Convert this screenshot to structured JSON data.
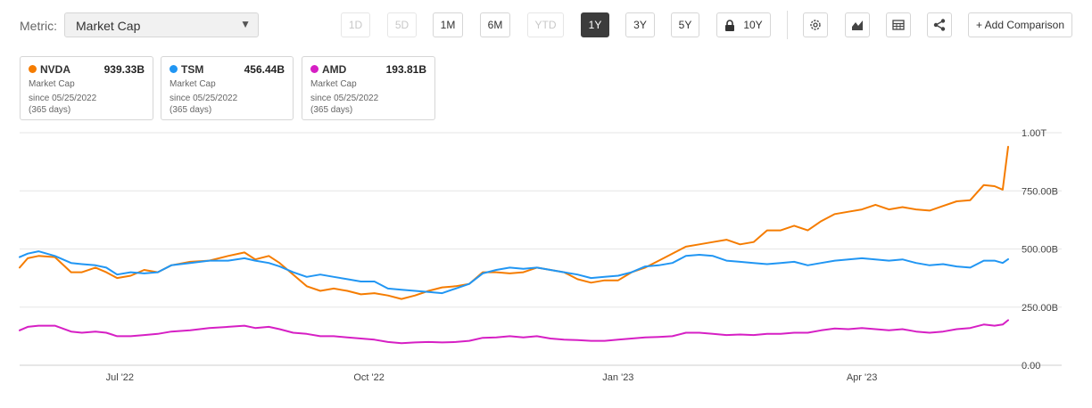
{
  "toolbar": {
    "metric_label": "Metric:",
    "metric_value": "Market Cap",
    "ranges": [
      {
        "label": "1D",
        "state": "disabled"
      },
      {
        "label": "5D",
        "state": "disabled"
      },
      {
        "label": "1M",
        "state": "normal"
      },
      {
        "label": "6M",
        "state": "normal"
      },
      {
        "label": "YTD",
        "state": "disabled"
      },
      {
        "label": "1Y",
        "state": "active"
      },
      {
        "label": "3Y",
        "state": "normal"
      },
      {
        "label": "5Y",
        "state": "normal"
      },
      {
        "label": "10Y",
        "state": "locked"
      }
    ],
    "icons": [
      "settings-icon",
      "area-chart-icon",
      "table-icon",
      "share-icon"
    ],
    "add_comparison": "+ Add Comparison"
  },
  "cards": [
    {
      "ticker": "NVDA",
      "value": "939.33B",
      "metric": "Market Cap",
      "since": "since 05/25/2022",
      "days": "(365 days)",
      "color": "#f57c00"
    },
    {
      "ticker": "TSM",
      "value": "456.44B",
      "metric": "Market Cap",
      "since": "since 05/25/2022",
      "days": "(365 days)",
      "color": "#2196f3"
    },
    {
      "ticker": "AMD",
      "value": "193.81B",
      "metric": "Market Cap",
      "since": "since 05/25/2022",
      "days": "(365 days)",
      "color": "#d61fc4"
    }
  ],
  "chart_data": {
    "type": "line",
    "y_unit": "USD",
    "ylim": [
      0,
      1000000000000
    ],
    "y_ticks": [
      {
        "value": 0,
        "label": "0.00"
      },
      {
        "value": 250000000000,
        "label": "250.00B"
      },
      {
        "value": 500000000000,
        "label": "500.00B"
      },
      {
        "value": 750000000000,
        "label": "750.00B"
      },
      {
        "value": 1000000000000,
        "label": "1.00T"
      }
    ],
    "xlim": [
      "2022-05-25",
      "2023-05-25"
    ],
    "x_ticks": [
      {
        "date": "2022-07-01",
        "label": "Jul '22"
      },
      {
        "date": "2022-10-01",
        "label": "Oct '22"
      },
      {
        "date": "2023-01-01",
        "label": "Jan '23"
      },
      {
        "date": "2023-04-01",
        "label": "Apr '23"
      }
    ],
    "grid": "horizontal",
    "series": [
      {
        "name": "NVDA",
        "color": "#f57c00",
        "points": [
          [
            "2022-05-25",
            420000000000
          ],
          [
            "2022-05-28",
            460000000000
          ],
          [
            "2022-06-01",
            470000000000
          ],
          [
            "2022-06-07",
            465000000000
          ],
          [
            "2022-06-13",
            400000000000
          ],
          [
            "2022-06-17",
            400000000000
          ],
          [
            "2022-06-22",
            420000000000
          ],
          [
            "2022-06-26",
            400000000000
          ],
          [
            "2022-06-30",
            375000000000
          ],
          [
            "2022-07-05",
            385000000000
          ],
          [
            "2022-07-10",
            410000000000
          ],
          [
            "2022-07-15",
            400000000000
          ],
          [
            "2022-07-20",
            430000000000
          ],
          [
            "2022-07-27",
            445000000000
          ],
          [
            "2022-08-03",
            450000000000
          ],
          [
            "2022-08-10",
            470000000000
          ],
          [
            "2022-08-16",
            485000000000
          ],
          [
            "2022-08-20",
            455000000000
          ],
          [
            "2022-08-25",
            470000000000
          ],
          [
            "2022-08-29",
            440000000000
          ],
          [
            "2022-09-03",
            390000000000
          ],
          [
            "2022-09-08",
            340000000000
          ],
          [
            "2022-09-13",
            320000000000
          ],
          [
            "2022-09-18",
            330000000000
          ],
          [
            "2022-09-23",
            320000000000
          ],
          [
            "2022-09-28",
            305000000000
          ],
          [
            "2022-10-03",
            310000000000
          ],
          [
            "2022-10-08",
            300000000000
          ],
          [
            "2022-10-13",
            285000000000
          ],
          [
            "2022-10-18",
            300000000000
          ],
          [
            "2022-10-23",
            320000000000
          ],
          [
            "2022-10-28",
            335000000000
          ],
          [
            "2022-11-02",
            340000000000
          ],
          [
            "2022-11-07",
            350000000000
          ],
          [
            "2022-11-12",
            400000000000
          ],
          [
            "2022-11-17",
            400000000000
          ],
          [
            "2022-11-22",
            395000000000
          ],
          [
            "2022-11-27",
            400000000000
          ],
          [
            "2022-12-02",
            420000000000
          ],
          [
            "2022-12-07",
            410000000000
          ],
          [
            "2022-12-12",
            400000000000
          ],
          [
            "2022-12-17",
            370000000000
          ],
          [
            "2022-12-22",
            355000000000
          ],
          [
            "2022-12-27",
            365000000000
          ],
          [
            "2023-01-01",
            365000000000
          ],
          [
            "2023-01-06",
            400000000000
          ],
          [
            "2023-01-11",
            420000000000
          ],
          [
            "2023-01-16",
            450000000000
          ],
          [
            "2023-01-21",
            480000000000
          ],
          [
            "2023-01-26",
            510000000000
          ],
          [
            "2023-01-31",
            520000000000
          ],
          [
            "2023-02-05",
            530000000000
          ],
          [
            "2023-02-10",
            540000000000
          ],
          [
            "2023-02-15",
            520000000000
          ],
          [
            "2023-02-20",
            530000000000
          ],
          [
            "2023-02-25",
            580000000000
          ],
          [
            "2023-03-02",
            580000000000
          ],
          [
            "2023-03-07",
            600000000000
          ],
          [
            "2023-03-12",
            580000000000
          ],
          [
            "2023-03-17",
            620000000000
          ],
          [
            "2023-03-22",
            650000000000
          ],
          [
            "2023-03-27",
            660000000000
          ],
          [
            "2023-04-01",
            670000000000
          ],
          [
            "2023-04-06",
            690000000000
          ],
          [
            "2023-04-11",
            670000000000
          ],
          [
            "2023-04-16",
            680000000000
          ],
          [
            "2023-04-21",
            670000000000
          ],
          [
            "2023-04-26",
            665000000000
          ],
          [
            "2023-05-01",
            685000000000
          ],
          [
            "2023-05-06",
            705000000000
          ],
          [
            "2023-05-11",
            710000000000
          ],
          [
            "2023-05-16",
            775000000000
          ],
          [
            "2023-05-20",
            770000000000
          ],
          [
            "2023-05-23",
            755000000000
          ],
          [
            "2023-05-25",
            939330000000
          ]
        ]
      },
      {
        "name": "TSM",
        "color": "#2196f3",
        "points": [
          [
            "2022-05-25",
            465000000000
          ],
          [
            "2022-05-28",
            480000000000
          ],
          [
            "2022-06-01",
            490000000000
          ],
          [
            "2022-06-07",
            470000000000
          ],
          [
            "2022-06-13",
            440000000000
          ],
          [
            "2022-06-17",
            435000000000
          ],
          [
            "2022-06-22",
            430000000000
          ],
          [
            "2022-06-26",
            420000000000
          ],
          [
            "2022-06-30",
            390000000000
          ],
          [
            "2022-07-05",
            400000000000
          ],
          [
            "2022-07-10",
            395000000000
          ],
          [
            "2022-07-15",
            400000000000
          ],
          [
            "2022-07-20",
            430000000000
          ],
          [
            "2022-07-27",
            440000000000
          ],
          [
            "2022-08-03",
            450000000000
          ],
          [
            "2022-08-10",
            450000000000
          ],
          [
            "2022-08-16",
            460000000000
          ],
          [
            "2022-08-20",
            450000000000
          ],
          [
            "2022-08-25",
            440000000000
          ],
          [
            "2022-08-29",
            425000000000
          ],
          [
            "2022-09-03",
            400000000000
          ],
          [
            "2022-09-08",
            380000000000
          ],
          [
            "2022-09-13",
            390000000000
          ],
          [
            "2022-09-18",
            380000000000
          ],
          [
            "2022-09-23",
            370000000000
          ],
          [
            "2022-09-28",
            360000000000
          ],
          [
            "2022-10-03",
            360000000000
          ],
          [
            "2022-10-08",
            330000000000
          ],
          [
            "2022-10-13",
            325000000000
          ],
          [
            "2022-10-18",
            320000000000
          ],
          [
            "2022-10-23",
            315000000000
          ],
          [
            "2022-10-28",
            310000000000
          ],
          [
            "2022-11-02",
            330000000000
          ],
          [
            "2022-11-07",
            350000000000
          ],
          [
            "2022-11-12",
            395000000000
          ],
          [
            "2022-11-17",
            410000000000
          ],
          [
            "2022-11-22",
            420000000000
          ],
          [
            "2022-11-27",
            415000000000
          ],
          [
            "2022-12-02",
            420000000000
          ],
          [
            "2022-12-07",
            410000000000
          ],
          [
            "2022-12-12",
            400000000000
          ],
          [
            "2022-12-17",
            390000000000
          ],
          [
            "2022-12-22",
            375000000000
          ],
          [
            "2022-12-27",
            380000000000
          ],
          [
            "2023-01-01",
            385000000000
          ],
          [
            "2023-01-06",
            400000000000
          ],
          [
            "2023-01-11",
            425000000000
          ],
          [
            "2023-01-16",
            430000000000
          ],
          [
            "2023-01-21",
            440000000000
          ],
          [
            "2023-01-26",
            470000000000
          ],
          [
            "2023-01-31",
            475000000000
          ],
          [
            "2023-02-05",
            470000000000
          ],
          [
            "2023-02-10",
            450000000000
          ],
          [
            "2023-02-15",
            445000000000
          ],
          [
            "2023-02-20",
            440000000000
          ],
          [
            "2023-02-25",
            435000000000
          ],
          [
            "2023-03-02",
            440000000000
          ],
          [
            "2023-03-07",
            445000000000
          ],
          [
            "2023-03-12",
            430000000000
          ],
          [
            "2023-03-17",
            440000000000
          ],
          [
            "2023-03-22",
            450000000000
          ],
          [
            "2023-03-27",
            455000000000
          ],
          [
            "2023-04-01",
            460000000000
          ],
          [
            "2023-04-06",
            455000000000
          ],
          [
            "2023-04-11",
            450000000000
          ],
          [
            "2023-04-16",
            455000000000
          ],
          [
            "2023-04-21",
            440000000000
          ],
          [
            "2023-04-26",
            430000000000
          ],
          [
            "2023-05-01",
            435000000000
          ],
          [
            "2023-05-06",
            425000000000
          ],
          [
            "2023-05-11",
            420000000000
          ],
          [
            "2023-05-16",
            450000000000
          ],
          [
            "2023-05-20",
            450000000000
          ],
          [
            "2023-05-23",
            440000000000
          ],
          [
            "2023-05-25",
            456440000000
          ]
        ]
      },
      {
        "name": "AMD",
        "color": "#d61fc4",
        "points": [
          [
            "2022-05-25",
            150000000000
          ],
          [
            "2022-05-28",
            165000000000
          ],
          [
            "2022-06-01",
            170000000000
          ],
          [
            "2022-06-07",
            170000000000
          ],
          [
            "2022-06-13",
            145000000000
          ],
          [
            "2022-06-17",
            140000000000
          ],
          [
            "2022-06-22",
            145000000000
          ],
          [
            "2022-06-26",
            140000000000
          ],
          [
            "2022-06-30",
            125000000000
          ],
          [
            "2022-07-05",
            125000000000
          ],
          [
            "2022-07-10",
            130000000000
          ],
          [
            "2022-07-15",
            135000000000
          ],
          [
            "2022-07-20",
            145000000000
          ],
          [
            "2022-07-27",
            150000000000
          ],
          [
            "2022-08-03",
            160000000000
          ],
          [
            "2022-08-10",
            165000000000
          ],
          [
            "2022-08-16",
            170000000000
          ],
          [
            "2022-08-20",
            160000000000
          ],
          [
            "2022-08-25",
            165000000000
          ],
          [
            "2022-08-29",
            155000000000
          ],
          [
            "2022-09-03",
            140000000000
          ],
          [
            "2022-09-08",
            135000000000
          ],
          [
            "2022-09-13",
            125000000000
          ],
          [
            "2022-09-18",
            125000000000
          ],
          [
            "2022-09-23",
            120000000000
          ],
          [
            "2022-09-28",
            115000000000
          ],
          [
            "2022-10-03",
            110000000000
          ],
          [
            "2022-10-08",
            100000000000
          ],
          [
            "2022-10-13",
            95000000000
          ],
          [
            "2022-10-18",
            98000000000
          ],
          [
            "2022-10-23",
            100000000000
          ],
          [
            "2022-10-28",
            98000000000
          ],
          [
            "2022-11-02",
            100000000000
          ],
          [
            "2022-11-07",
            105000000000
          ],
          [
            "2022-11-12",
            118000000000
          ],
          [
            "2022-11-17",
            120000000000
          ],
          [
            "2022-11-22",
            125000000000
          ],
          [
            "2022-11-27",
            120000000000
          ],
          [
            "2022-12-02",
            125000000000
          ],
          [
            "2022-12-07",
            115000000000
          ],
          [
            "2022-12-12",
            110000000000
          ],
          [
            "2022-12-17",
            108000000000
          ],
          [
            "2022-12-22",
            105000000000
          ],
          [
            "2022-12-27",
            105000000000
          ],
          [
            "2023-01-01",
            110000000000
          ],
          [
            "2023-01-06",
            115000000000
          ],
          [
            "2023-01-11",
            120000000000
          ],
          [
            "2023-01-16",
            122000000000
          ],
          [
            "2023-01-21",
            125000000000
          ],
          [
            "2023-01-26",
            140000000000
          ],
          [
            "2023-01-31",
            140000000000
          ],
          [
            "2023-02-05",
            135000000000
          ],
          [
            "2023-02-10",
            130000000000
          ],
          [
            "2023-02-15",
            132000000000
          ],
          [
            "2023-02-20",
            130000000000
          ],
          [
            "2023-02-25",
            135000000000
          ],
          [
            "2023-03-02",
            135000000000
          ],
          [
            "2023-03-07",
            140000000000
          ],
          [
            "2023-03-12",
            140000000000
          ],
          [
            "2023-03-17",
            150000000000
          ],
          [
            "2023-03-22",
            158000000000
          ],
          [
            "2023-03-27",
            155000000000
          ],
          [
            "2023-04-01",
            160000000000
          ],
          [
            "2023-04-06",
            155000000000
          ],
          [
            "2023-04-11",
            150000000000
          ],
          [
            "2023-04-16",
            155000000000
          ],
          [
            "2023-04-21",
            145000000000
          ],
          [
            "2023-04-26",
            140000000000
          ],
          [
            "2023-05-01",
            145000000000
          ],
          [
            "2023-05-06",
            155000000000
          ],
          [
            "2023-05-11",
            160000000000
          ],
          [
            "2023-05-16",
            175000000000
          ],
          [
            "2023-05-20",
            170000000000
          ],
          [
            "2023-05-23",
            175000000000
          ],
          [
            "2023-05-25",
            193810000000
          ]
        ]
      }
    ]
  }
}
